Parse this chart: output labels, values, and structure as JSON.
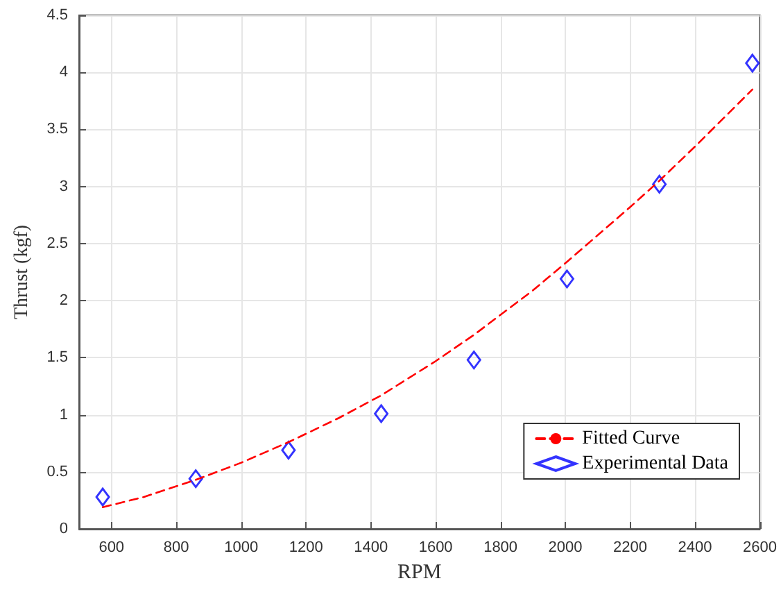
{
  "chart_data": {
    "type": "line",
    "xlabel": "RPM",
    "ylabel": "Thrust (kgf)",
    "series": [
      {
        "name": "Fitted Curve",
        "color": "#ff0000",
        "line_style": "dashed",
        "marker": "none",
        "x": [
          573,
          700,
          860,
          1000,
          1146,
          1300,
          1432,
          1600,
          1718,
          1900,
          2005,
          2200,
          2290,
          2400,
          2577
        ],
        "values": [
          0.19,
          0.28,
          0.43,
          0.58,
          0.76,
          0.97,
          1.17,
          1.47,
          1.7,
          2.09,
          2.34,
          2.82,
          3.05,
          3.35,
          3.85
        ]
      },
      {
        "name": "Experimental Data",
        "type": "scatter",
        "color": "#0000ff",
        "marker": "diamond",
        "x": [
          573,
          860,
          1146,
          1432,
          1718,
          2005,
          2290,
          2577
        ],
        "values": [
          0.28,
          0.44,
          0.69,
          1.01,
          1.48,
          2.19,
          3.02,
          4.08
        ]
      }
    ],
    "xlim": [
      500,
      2600
    ],
    "xticks": [
      600,
      800,
      1000,
      1200,
      1400,
      1600,
      1800,
      2000,
      2200,
      2400,
      2600
    ],
    "ylim": [
      0,
      4.5
    ],
    "yticks": [
      0,
      0.5,
      1,
      1.5,
      2,
      2.5,
      3,
      3.5,
      4,
      4.5
    ],
    "grid": true,
    "legend": "bottom right"
  }
}
